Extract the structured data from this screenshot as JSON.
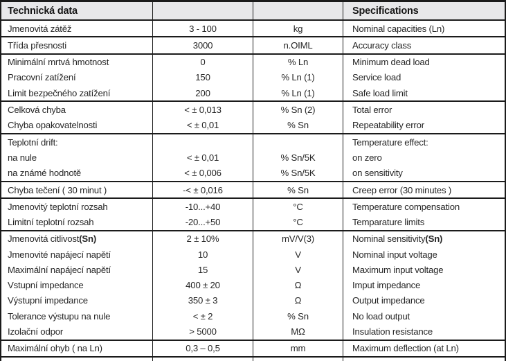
{
  "header": {
    "title_cs": "Technická data",
    "title_en": "Specifications"
  },
  "colors": {
    "header_bg": "#e8e8ea",
    "border": "#1b1b1b",
    "text": "#262626"
  },
  "groups": [
    {
      "rows": [
        {
          "cs": "Jmenovitá zátěž",
          "value": "3 - 100",
          "unit": "kg",
          "en": "Nominal capacities (Ln)"
        }
      ]
    },
    {
      "rows": [
        {
          "cs": "Třída přesnosti",
          "value": "3000",
          "unit": "n.OIML",
          "en": "Accuracy class"
        }
      ]
    },
    {
      "rows": [
        {
          "cs": "Minimální mrtvá hmotnost",
          "value": "0",
          "unit": "% Ln",
          "en": "Minimum dead load"
        },
        {
          "cs": "Pracovní zatížení",
          "value": "150",
          "unit": "% Ln (1)",
          "en": "Service load"
        },
        {
          "cs": "Limit bezpečného zatížení",
          "value": "200",
          "unit": "% Ln (1)",
          "en": "Safe load limit"
        }
      ]
    },
    {
      "rows": [
        {
          "cs": "Celková chyba",
          "value": "< ± 0,013",
          "unit": "% Sn (2)",
          "en": "Total error"
        },
        {
          "cs": "Chyba opakovatelnosti",
          "value": "< ± 0,01",
          "unit": "% Sn",
          "en": "Repeatability error"
        }
      ]
    },
    {
      "rows": [
        {
          "cs": "Teplotní drift:",
          "value": "",
          "unit": "",
          "en": "Temperature effect:"
        },
        {
          "cs": "na nule",
          "value": "< ± 0,01",
          "unit": "% Sn/5K",
          "en": "on zero"
        },
        {
          "cs": "na známé hodnotě",
          "value": "< ± 0,006",
          "unit": "% Sn/5K",
          "en": "on sensitivity"
        }
      ]
    },
    {
      "rows": [
        {
          "cs": "Chyba tečení ( 30 minut )",
          "value": "-< ± 0,016",
          "unit": "% Sn",
          "en": "Creep error (30 minutes )"
        }
      ]
    },
    {
      "rows": [
        {
          "cs": "Jmenovitý teplotní rozsah",
          "value": "-10...+40",
          "unit": "°C",
          "en": "Temperature compensation"
        },
        {
          "cs": "Limitní teplotní rozsah",
          "value": "-20...+50",
          "unit": "°C",
          "en": "Temparature limits"
        }
      ]
    },
    {
      "rows": [
        {
          "cs": "Jmenovitá citlivost ",
          "cs_bold": "(Sn)",
          "value": "2 ± 10%",
          "unit": "mV/V(3)",
          "en": "Nominal sensitivity ",
          "en_bold": "(Sn)"
        },
        {
          "cs": "Jmenovité napájecí napětí",
          "value": "10",
          "unit": "V",
          "en": "Nominal input voltage"
        },
        {
          "cs": "Maximální napájecí napětí",
          "value": "15",
          "unit": "V",
          "en": "Maximum input voltage"
        },
        {
          "cs": "Vstupní impedance",
          "value": "400 ± 20",
          "unit": "Ω",
          "en": "Imput impedance"
        },
        {
          "cs": "Výstupní impedance",
          "value": "350 ± 3",
          "unit": "Ω",
          "en": "Output impedance"
        },
        {
          "cs": "Tolerance výstupu na nule",
          "value": "< ± 2",
          "unit": "% Sn",
          "en": "No load output"
        },
        {
          "cs": "Izolační odpor",
          "value": "> 5000",
          "unit": "MΩ",
          "en": "Insulation resistance"
        }
      ]
    },
    {
      "rows": [
        {
          "cs": "Maximální ohyb ( na Ln)",
          "value": "0,3 – 0,5",
          "unit": "mm",
          "en": "Maximum deflection (at Ln)"
        }
      ]
    }
  ]
}
